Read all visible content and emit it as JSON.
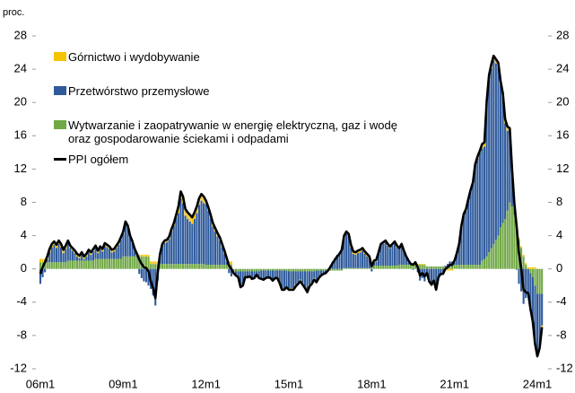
{
  "chart_data": {
    "type": "bar",
    "unit_label": "proc.",
    "categories": [
      "06m1",
      null,
      null,
      null,
      null,
      null,
      null,
      null,
      null,
      null,
      null,
      null,
      null,
      null,
      null,
      null,
      null,
      null,
      null,
      null,
      null,
      null,
      null,
      null,
      null,
      null,
      null,
      null,
      null,
      null,
      null,
      null,
      null,
      null,
      null,
      null,
      "09m1",
      null,
      null,
      null,
      null,
      null,
      null,
      null,
      null,
      null,
      null,
      null,
      null,
      null,
      null,
      null,
      null,
      null,
      null,
      null,
      null,
      null,
      null,
      null,
      null,
      null,
      null,
      null,
      null,
      null,
      null,
      null,
      null,
      null,
      null,
      null,
      "12m1",
      null,
      null,
      null,
      null,
      null,
      null,
      null,
      null,
      null,
      null,
      null,
      null,
      null,
      null,
      null,
      null,
      null,
      null,
      null,
      null,
      null,
      null,
      null,
      null,
      null,
      null,
      null,
      null,
      null,
      null,
      null,
      null,
      null,
      null,
      null,
      "15m1",
      null,
      null,
      null,
      null,
      null,
      null,
      null,
      null,
      null,
      null,
      null,
      null,
      null,
      null,
      null,
      null,
      null,
      null,
      null,
      null,
      null,
      null,
      null,
      null,
      null,
      null,
      null,
      null,
      null,
      null,
      null,
      null,
      null,
      null,
      null,
      "18m1",
      null,
      null,
      null,
      null,
      null,
      null,
      null,
      null,
      null,
      null,
      null,
      null,
      null,
      null,
      null,
      null,
      null,
      null,
      null,
      null,
      null,
      null,
      null,
      null,
      null,
      null,
      null,
      null,
      null,
      null,
      null,
      null,
      null,
      null,
      null,
      "21m1",
      null,
      null,
      null,
      null,
      null,
      null,
      null,
      null,
      null,
      null,
      null,
      null,
      null,
      null,
      null,
      null,
      null,
      null,
      null,
      null,
      null,
      null,
      null,
      null,
      null,
      null,
      null,
      null,
      null,
      null,
      null,
      null,
      null,
      null,
      null,
      "24m1",
      null,
      null
    ],
    "series": [
      {
        "name": "Górnictwo i wydobywanie",
        "color": "#f5c400",
        "type": "bar",
        "values": [
          0.4,
          0.4,
          0.4,
          0.4,
          0.4,
          0.4,
          0.4,
          0.4,
          0.4,
          0.4,
          0.4,
          0.4,
          0.3,
          0.3,
          0.3,
          0.3,
          0.3,
          0.3,
          0.3,
          0.3,
          0.3,
          0.3,
          0.3,
          0.3,
          0.3,
          0.3,
          0.3,
          0.3,
          0.3,
          0.3,
          0.3,
          0.3,
          0.3,
          0.3,
          0.3,
          0.3,
          0.2,
          0.2,
          0.2,
          0.2,
          0.2,
          0.2,
          0.2,
          0.2,
          0.2,
          0.2,
          0.2,
          0.2,
          0.3,
          0.3,
          0.3,
          0.3,
          0.3,
          0.3,
          0.3,
          0.3,
          0.3,
          0.3,
          0.3,
          0.3,
          0.8,
          0.8,
          0.8,
          0.8,
          0.8,
          0.8,
          0.8,
          0.8,
          0.8,
          0.8,
          0.8,
          0.8,
          0.4,
          0.4,
          0.4,
          0.4,
          0.4,
          0.4,
          0.4,
          0.4,
          0.4,
          0.4,
          0.4,
          0.4,
          -0.1,
          -0.1,
          -0.1,
          -0.1,
          -0.1,
          -0.1,
          -0.1,
          -0.1,
          -0.1,
          -0.1,
          -0.1,
          -0.1,
          -0.1,
          -0.1,
          -0.1,
          -0.1,
          -0.1,
          -0.1,
          -0.1,
          -0.1,
          -0.1,
          -0.1,
          -0.1,
          -0.1,
          -0.2,
          -0.2,
          -0.2,
          -0.2,
          -0.2,
          -0.2,
          -0.2,
          -0.2,
          -0.2,
          -0.2,
          -0.2,
          -0.2,
          0,
          0,
          0,
          0,
          0,
          0,
          0,
          0,
          0,
          0,
          0,
          0,
          0.3,
          0.3,
          0.3,
          0.3,
          0.3,
          0.3,
          0.3,
          0.3,
          0.3,
          0.3,
          0.3,
          0.3,
          0.2,
          0.2,
          0.2,
          0.2,
          0.2,
          0.2,
          0.2,
          0.2,
          0.2,
          0.2,
          0.2,
          0.2,
          0.1,
          0.1,
          0.1,
          0.1,
          0.1,
          0.1,
          0.1,
          0.1,
          0.1,
          0.1,
          0.1,
          0.1,
          -0.2,
          -0.2,
          -0.2,
          -0.2,
          -0.2,
          -0.2,
          -0.2,
          -0.2,
          -0.2,
          -0.2,
          -0.2,
          -0.2,
          0.2,
          0.2,
          0.2,
          0.2,
          0.2,
          0.2,
          0.2,
          0.2,
          0.2,
          0.2,
          0.2,
          0.2,
          0.5,
          0.5,
          0.5,
          0.5,
          0.5,
          0.5,
          0.5,
          0.5,
          0.5,
          0.5,
          0.5,
          0.5,
          0.2,
          0.2,
          0.2,
          0.2,
          0.2,
          0.2,
          0.2,
          0.2,
          0.2,
          0.2,
          0.2,
          0.2,
          -0.2,
          -0.2,
          -0.2
        ]
      },
      {
        "name": "Przetwórstwo przemysłowe",
        "color": "#2e5a9c",
        "type": "bar",
        "values": [
          -1.8,
          -1.0,
          -0.4,
          0.3,
          1.2,
          1.8,
          2.1,
          1.7,
          2.2,
          1.8,
          1.1,
          1.6,
          2.1,
          1.5,
          1.2,
          0.9,
          0.5,
          0.3,
          0.7,
          0.2,
          0.5,
          1.0,
          0.7,
          1.1,
          1.3,
          0.7,
          1.2,
          0.9,
          1.6,
          1.4,
          1.2,
          0.8,
          0.9,
          1.3,
          1.7,
          2.3,
          2.8,
          4.0,
          3.5,
          2.3,
          1.6,
          0.7,
          0.1,
          -0.6,
          -1.1,
          -1.5,
          -1.6,
          -2.0,
          -2.4,
          -3.2,
          -4.4,
          -1.4,
          0.9,
          2.1,
          2.5,
          2.6,
          3.0,
          3.9,
          4.6,
          5.6,
          6.1,
          7.9,
          7.3,
          5.8,
          5.4,
          5.1,
          4.8,
          5.4,
          6.1,
          7.1,
          7.6,
          7.3,
          7.3,
          6.5,
          5.6,
          4.6,
          4.0,
          3.4,
          2.9,
          2.1,
          1.3,
          0.4,
          -0.5,
          -0.9,
          -0.1,
          -0.4,
          -0.6,
          -1.8,
          -1.6,
          -0.6,
          -0.6,
          -0.5,
          -0.8,
          -0.7,
          -0.3,
          -0.7,
          -0.9,
          -1.0,
          -0.8,
          -0.7,
          -0.8,
          -1.1,
          -0.8,
          -0.8,
          -1.4,
          -2.2,
          -2.2,
          -1.9,
          -2.0,
          -2.0,
          -2.0,
          -1.6,
          -1.3,
          -1.0,
          -1.4,
          -1.8,
          -2.3,
          -1.6,
          -1.3,
          -0.8,
          -1.4,
          -0.9,
          -0.6,
          -0.4,
          -0.3,
          0.0,
          0.4,
          0.9,
          1.3,
          1.7,
          2.0,
          2.5,
          3.6,
          4.1,
          3.8,
          2.5,
          1.7,
          1.6,
          1.8,
          1.9,
          2.1,
          1.7,
          1.4,
          1.1,
          -0.3,
          0.4,
          0.5,
          1.4,
          2.4,
          2.6,
          2.8,
          2.4,
          2.1,
          2.4,
          2.7,
          2.2,
          1.9,
          2.4,
          1.6,
          0.9,
          0.4,
          0.0,
          -0.1,
          0.2,
          -0.4,
          -1.4,
          -1.1,
          -1.5,
          -0.4,
          -1.4,
          -1.8,
          -1.3,
          -2.4,
          -0.9,
          -0.5,
          -0.5,
          0.1,
          0.3,
          0.6,
          0.6,
          0.3,
          1.2,
          2.3,
          4.5,
          5.9,
          6.5,
          7.7,
          8.8,
          9.7,
          11.9,
          12.8,
          13.5,
          13.5,
          13.5,
          18.2,
          20.8,
          21.6,
          22.1,
          21.2,
          20.3,
          17.1,
          15.1,
          11.5,
          9.6,
          8.7,
          4.3,
          1.2,
          -0.1,
          -1.8,
          -2.7,
          -4.2,
          -3.5,
          -3.1,
          -4.5,
          -5.5,
          -7.2,
          -7.3,
          -6.3,
          -3.8
        ]
      },
      {
        "name": "Wytwarzanie i zaopatrywanie w energię elektryczną, gaz i wodę\noraz gospodarowanie ściekami i odpadami",
        "color": "#70a845",
        "type": "bar",
        "values": [
          0.8,
          0.8,
          0.8,
          0.8,
          0.8,
          0.8,
          0.8,
          0.8,
          0.8,
          0.8,
          0.8,
          0.8,
          1.0,
          1.0,
          1.0,
          1.0,
          1.0,
          1.0,
          1.0,
          1.0,
          1.0,
          1.0,
          1.0,
          1.0,
          1.2,
          1.2,
          1.2,
          1.2,
          1.2,
          1.2,
          1.2,
          1.2,
          1.2,
          1.2,
          1.2,
          1.2,
          1.5,
          1.5,
          1.5,
          1.5,
          1.5,
          1.5,
          1.5,
          1.5,
          1.5,
          1.5,
          1.5,
          1.5,
          0.6,
          0.6,
          0.6,
          0.6,
          0.6,
          0.6,
          0.6,
          0.6,
          0.6,
          0.6,
          0.6,
          0.6,
          0.6,
          0.6,
          0.6,
          0.6,
          0.6,
          0.6,
          0.6,
          0.6,
          0.6,
          0.6,
          0.6,
          0.6,
          0.5,
          0.5,
          0.5,
          0.5,
          0.5,
          0.5,
          0.5,
          0.5,
          0.5,
          0.5,
          0.5,
          0.5,
          -0.3,
          -0.3,
          -0.3,
          -0.3,
          -0.3,
          -0.3,
          -0.3,
          -0.3,
          -0.3,
          -0.3,
          -0.3,
          -0.3,
          -0.2,
          -0.2,
          -0.2,
          -0.2,
          -0.2,
          -0.2,
          -0.2,
          -0.2,
          -0.2,
          -0.2,
          -0.2,
          -0.2,
          -0.3,
          -0.3,
          -0.3,
          -0.3,
          -0.3,
          -0.3,
          -0.3,
          -0.3,
          -0.3,
          -0.3,
          -0.3,
          -0.3,
          -0.2,
          -0.2,
          -0.2,
          -0.2,
          -0.2,
          -0.2,
          -0.2,
          -0.2,
          -0.2,
          -0.2,
          -0.2,
          -0.2,
          0.1,
          0.1,
          0.1,
          0.1,
          0.1,
          0.1,
          0.1,
          0.1,
          0.1,
          0.1,
          0.1,
          0.1,
          0.4,
          0.4,
          0.4,
          0.4,
          0.4,
          0.4,
          0.4,
          0.4,
          0.4,
          0.4,
          0.4,
          0.4,
          0.5,
          0.5,
          0.5,
          0.5,
          0.5,
          0.5,
          0.5,
          0.5,
          0.5,
          0.5,
          0.5,
          0.5,
          0.3,
          0.3,
          0.3,
          0.3,
          0.3,
          0.3,
          0.3,
          0.3,
          0.3,
          0.3,
          0.3,
          0.3,
          0.5,
          0.5,
          0.5,
          0.5,
          0.5,
          0.5,
          0.5,
          0.5,
          0.5,
          0.5,
          0.5,
          0.5,
          1.0,
          1.2,
          1.5,
          2.0,
          2.5,
          3.0,
          3.5,
          4.0,
          5.0,
          5.5,
          6.0,
          7.0,
          8.0,
          7.5,
          6.5,
          5.0,
          3.5,
          2.5,
          1.5,
          0.5,
          0.0,
          -0.5,
          -1.0,
          -2.0,
          -3.0,
          -3.0,
          -3.0
        ]
      },
      {
        "name": "PPI ogółem",
        "color": "#000000",
        "type": "line",
        "values": [
          -0.6,
          0.2,
          0.8,
          1.5,
          2.4,
          3.0,
          3.3,
          2.9,
          3.4,
          3.0,
          2.3,
          2.8,
          3.4,
          2.8,
          2.5,
          2.2,
          1.8,
          1.6,
          2.0,
          1.5,
          1.8,
          2.3,
          2.0,
          2.4,
          2.8,
          2.2,
          2.7,
          2.4,
          3.1,
          2.9,
          2.7,
          2.3,
          2.4,
          2.8,
          3.2,
          3.8,
          4.5,
          5.7,
          5.2,
          4.0,
          3.3,
          2.4,
          1.8,
          1.1,
          0.6,
          0.2,
          0.1,
          -0.3,
          -1.5,
          -2.3,
          -3.5,
          -0.5,
          1.8,
          3.0,
          3.4,
          3.5,
          3.9,
          4.8,
          5.5,
          6.5,
          7.5,
          9.3,
          8.7,
          7.2,
          6.8,
          6.5,
          6.2,
          6.8,
          7.5,
          8.5,
          9.0,
          8.7,
          8.2,
          7.4,
          6.5,
          5.5,
          4.9,
          4.3,
          3.8,
          3.0,
          2.2,
          1.3,
          0.4,
          0.0,
          -0.5,
          -0.8,
          -1.0,
          -2.2,
          -2.0,
          -1.0,
          -1.0,
          -0.9,
          -1.2,
          -1.1,
          -0.7,
          -1.1,
          -1.2,
          -1.3,
          -1.1,
          -1.0,
          -1.1,
          -1.4,
          -1.1,
          -1.1,
          -1.7,
          -2.5,
          -2.5,
          -2.2,
          -2.5,
          -2.5,
          -2.5,
          -2.1,
          -1.8,
          -1.5,
          -1.9,
          -2.3,
          -2.8,
          -2.1,
          -1.8,
          -1.3,
          -1.6,
          -1.1,
          -0.8,
          -0.6,
          -0.5,
          -0.2,
          0.2,
          0.7,
          1.1,
          1.5,
          1.8,
          2.3,
          4.0,
          4.5,
          4.2,
          2.9,
          2.1,
          2.0,
          2.2,
          2.3,
          2.5,
          2.1,
          1.8,
          1.5,
          0.3,
          1.0,
          1.1,
          2.0,
          3.0,
          3.2,
          3.4,
          3.0,
          2.7,
          3.0,
          3.3,
          2.8,
          2.5,
          3.0,
          2.2,
          1.5,
          1.0,
          0.6,
          0.5,
          0.8,
          0.2,
          -0.8,
          -0.5,
          -0.9,
          -0.5,
          -1.5,
          -1.9,
          -1.4,
          -2.5,
          -1.0,
          -0.6,
          -0.6,
          0.0,
          0.2,
          0.5,
          0.5,
          1.0,
          1.9,
          3.0,
          5.2,
          6.6,
          7.2,
          8.4,
          9.5,
          10.4,
          12.6,
          13.5,
          14.2,
          15.0,
          15.2,
          20.2,
          23.3,
          24.6,
          25.6,
          25.2,
          24.8,
          22.6,
          21.1,
          18.0,
          17.1,
          16.9,
          12.0,
          7.9,
          5.1,
          1.9,
          0.0,
          -2.5,
          -2.8,
          -2.9,
          -4.8,
          -6.3,
          -9.0,
          -10.5,
          -9.5,
          -7.0
        ]
      }
    ],
    "ylim": [
      -12,
      28
    ],
    "yticks": [
      -12,
      -8,
      -4,
      0,
      4,
      8,
      12,
      16,
      20,
      24,
      28
    ],
    "stacked": true,
    "legend": "top-left"
  }
}
